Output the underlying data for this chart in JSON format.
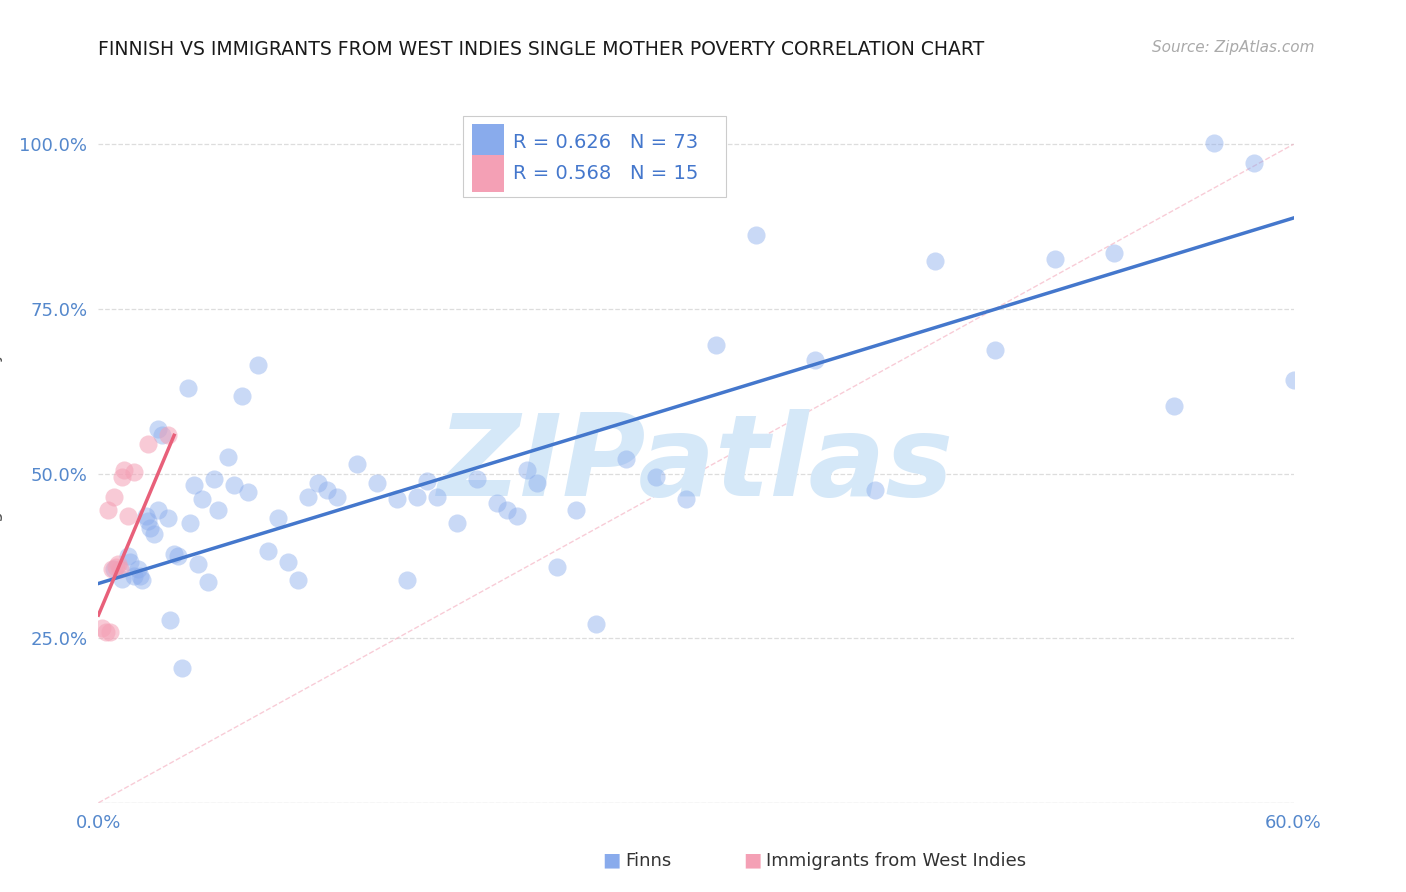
{
  "title": "FINNISH VS IMMIGRANTS FROM WEST INDIES SINGLE MOTHER POVERTY CORRELATION CHART",
  "source": "Source: ZipAtlas.com",
  "ylabel": "Single Mother Poverty",
  "ytick_values": [
    0.0,
    0.25,
    0.5,
    0.75,
    1.0
  ],
  "ytick_labels": [
    "",
    "25.0%",
    "50.0%",
    "75.0%",
    "100.0%"
  ],
  "xtick_values": [
    0.0,
    0.1,
    0.2,
    0.3,
    0.4,
    0.5,
    0.6
  ],
  "xtick_labels": [
    "0.0%",
    "",
    "",
    "",
    "",
    "",
    "60.0%"
  ],
  "xmin": 0.0,
  "xmax": 0.6,
  "ymin": 0.0,
  "ymax": 1.07,
  "finn_R": "0.626",
  "finn_N": "73",
  "wi_R": "0.568",
  "wi_N": "15",
  "finn_scatter_color": "#89ABEC",
  "finn_scatter_alpha": 0.45,
  "wi_scatter_color": "#F4A0B5",
  "wi_scatter_alpha": 0.55,
  "finn_line_color": "#4477CC",
  "wi_line_color": "#E8607A",
  "ref_line_color": "#F4AABC",
  "ref_line_alpha": 0.6,
  "grid_color": "#DDDDDD",
  "watermark_color": "#D5E8F8",
  "title_color": "#1A1A1A",
  "axis_tick_color": "#5588CC",
  "ylabel_color": "#555555",
  "legend_box_edge": "#CCCCCC",
  "legend_text_color": "#4477CC",
  "background_color": "#FFFFFF",
  "finn_scatter_x": [
    0.008,
    0.012,
    0.015,
    0.016,
    0.018,
    0.02,
    0.021,
    0.022,
    0.024,
    0.025,
    0.026,
    0.028,
    0.03,
    0.03,
    0.032,
    0.035,
    0.036,
    0.038,
    0.04,
    0.042,
    0.045,
    0.046,
    0.048,
    0.05,
    0.052,
    0.055,
    0.058,
    0.06,
    0.065,
    0.068,
    0.072,
    0.075,
    0.08,
    0.085,
    0.09,
    0.095,
    0.1,
    0.105,
    0.11,
    0.115,
    0.12,
    0.13,
    0.14,
    0.15,
    0.155,
    0.16,
    0.165,
    0.17,
    0.18,
    0.19,
    0.2,
    0.205,
    0.21,
    0.215,
    0.22,
    0.23,
    0.24,
    0.25,
    0.265,
    0.28,
    0.295,
    0.31,
    0.33,
    0.36,
    0.39,
    0.42,
    0.45,
    0.48,
    0.51,
    0.54,
    0.56,
    0.58,
    0.6
  ],
  "finn_scatter_y": [
    0.355,
    0.34,
    0.375,
    0.365,
    0.345,
    0.355,
    0.345,
    0.338,
    0.435,
    0.428,
    0.418,
    0.408,
    0.445,
    0.568,
    0.558,
    0.432,
    0.278,
    0.378,
    0.375,
    0.205,
    0.63,
    0.425,
    0.482,
    0.362,
    0.462,
    0.335,
    0.492,
    0.445,
    0.525,
    0.482,
    0.618,
    0.472,
    0.665,
    0.382,
    0.432,
    0.365,
    0.338,
    0.465,
    0.485,
    0.475,
    0.465,
    0.515,
    0.485,
    0.462,
    0.338,
    0.465,
    0.488,
    0.465,
    0.425,
    0.492,
    0.455,
    0.445,
    0.435,
    0.505,
    0.485,
    0.358,
    0.445,
    0.272,
    0.522,
    0.495,
    0.462,
    0.695,
    0.862,
    0.672,
    0.475,
    0.822,
    0.688,
    0.825,
    0.835,
    0.602,
    1.002,
    0.972,
    0.642
  ],
  "wi_scatter_x": [
    0.002,
    0.004,
    0.005,
    0.006,
    0.007,
    0.008,
    0.009,
    0.01,
    0.011,
    0.012,
    0.013,
    0.015,
    0.018,
    0.025,
    0.035
  ],
  "wi_scatter_y": [
    0.265,
    0.26,
    0.445,
    0.26,
    0.355,
    0.465,
    0.358,
    0.362,
    0.355,
    0.495,
    0.505,
    0.435,
    0.502,
    0.545,
    0.558
  ],
  "finn_line_x0": 0.0,
  "finn_line_x1": 0.6,
  "finn_line_y0": 0.333,
  "finn_line_y1": 0.888,
  "wi_line_x0": 0.0,
  "wi_line_x1": 0.038,
  "wi_line_y0": 0.285,
  "wi_line_y1": 0.558,
  "ref_line_x0": 0.0,
  "ref_line_x1": 0.6,
  "ref_line_y0": 0.0,
  "ref_line_y1": 1.0,
  "watermark_text": "ZIPatlas",
  "bottom_finn_label": "Finns",
  "bottom_wi_label": "Immigrants from West Indies"
}
